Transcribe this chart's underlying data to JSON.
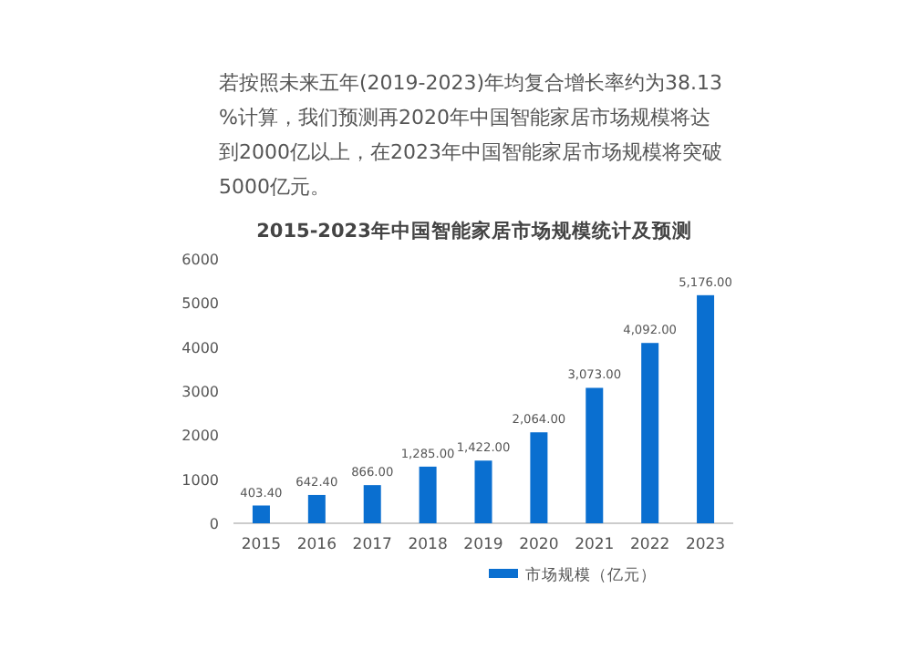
{
  "chart_data": {
    "type": "bar",
    "title": "2015-2023年中国智能家居市场规模统计及预测",
    "subtitle": "若按照未来五年(2019-2023)年均复合增长率约为38.13%计算，我们预测再2020年中国智能家居市场规模将达到2000亿以上，在2023年中国智能家居市场规模将突破5000亿元。",
    "categories": [
      "2015",
      "2016",
      "2017",
      "2018",
      "2019",
      "2020",
      "2021",
      "2022",
      "2023"
    ],
    "series": [
      {
        "name": "市场规模（亿元）",
        "color": "#0a6fd0",
        "values": [
          403.4,
          642.4,
          866,
          1285,
          1422,
          2064,
          3073,
          4092,
          5176
        ],
        "value_labels": [
          "403.40",
          "642.40",
          "866.00",
          "1,285.00",
          "1,422.00",
          "2,064.00",
          "3,073.00",
          "4,092.00",
          "5,176.00"
        ]
      }
    ],
    "ylim": [
      0,
      6000
    ],
    "yticks": [
      0,
      1000,
      2000,
      3000,
      4000,
      5000,
      6000
    ],
    "legend": "bottom"
  }
}
